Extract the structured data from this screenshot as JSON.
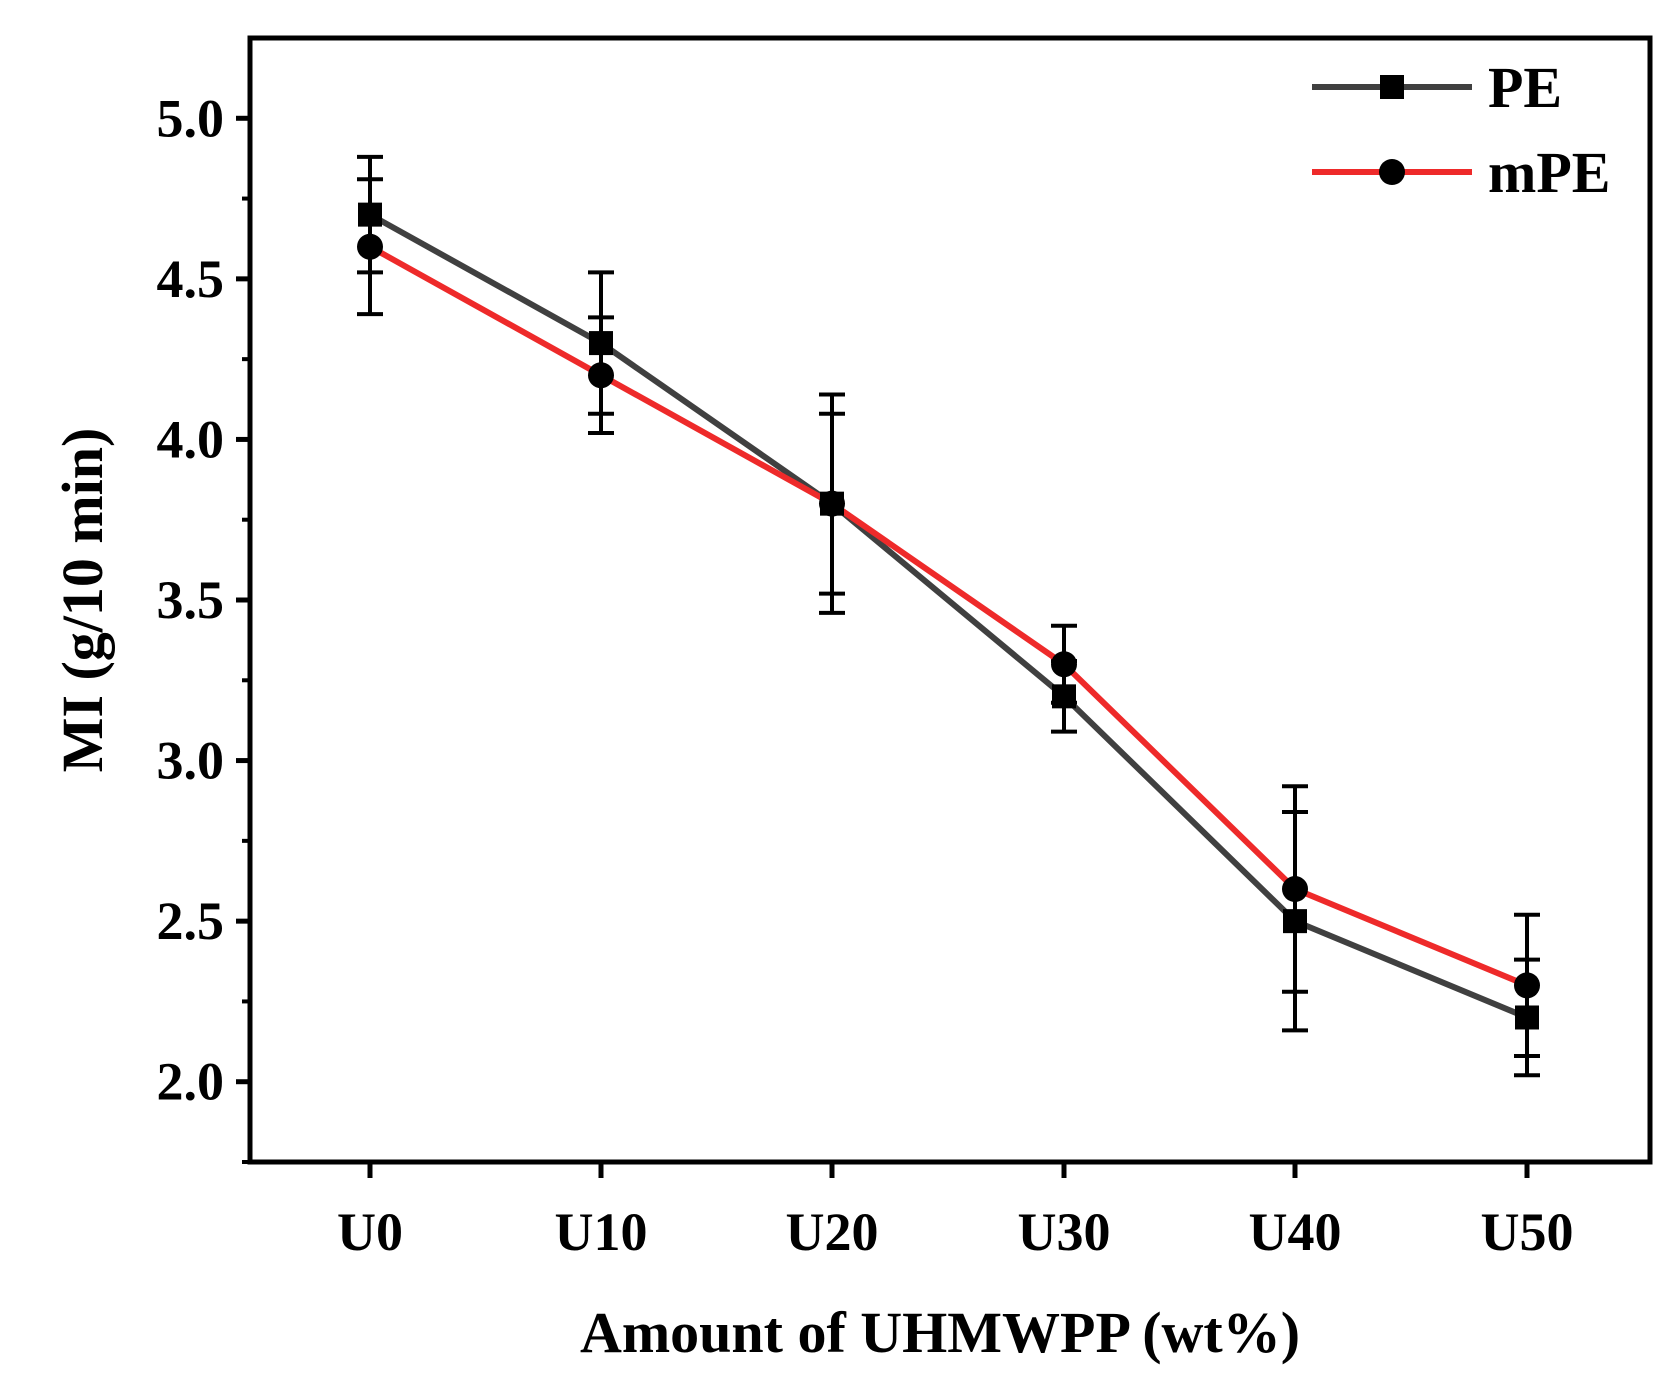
{
  "chart_data": {
    "type": "line",
    "title": "",
    "xlabel": "Amount of UHMWPP (wt%)",
    "ylabel": "MI (g/10 min)",
    "categories": [
      "U0",
      "U10",
      "U20",
      "U30",
      "U40",
      "U50"
    ],
    "ylim": [
      1.75,
      5.25
    ],
    "yticks": [
      2.0,
      2.5,
      3.0,
      3.5,
      4.0,
      4.5,
      5.0
    ],
    "ytick_labels": [
      "2.0",
      "2.5",
      "3.0",
      "3.5",
      "4.0",
      "4.5",
      "5.0"
    ],
    "grid": false,
    "legend_position": "top-right",
    "series": [
      {
        "name": "PE",
        "color": "#404040",
        "marker": "square",
        "values": [
          4.7,
          4.3,
          3.8,
          3.2,
          2.5,
          2.2
        ],
        "errors": [
          0.18,
          0.22,
          0.28,
          0.11,
          0.34,
          0.18
        ]
      },
      {
        "name": "mPE",
        "color": "#ee2a2a",
        "marker": "circle",
        "values": [
          4.6,
          4.2,
          3.8,
          3.3,
          2.6,
          2.3
        ],
        "errors": [
          0.21,
          0.18,
          0.34,
          0.12,
          0.32,
          0.22
        ]
      }
    ]
  }
}
